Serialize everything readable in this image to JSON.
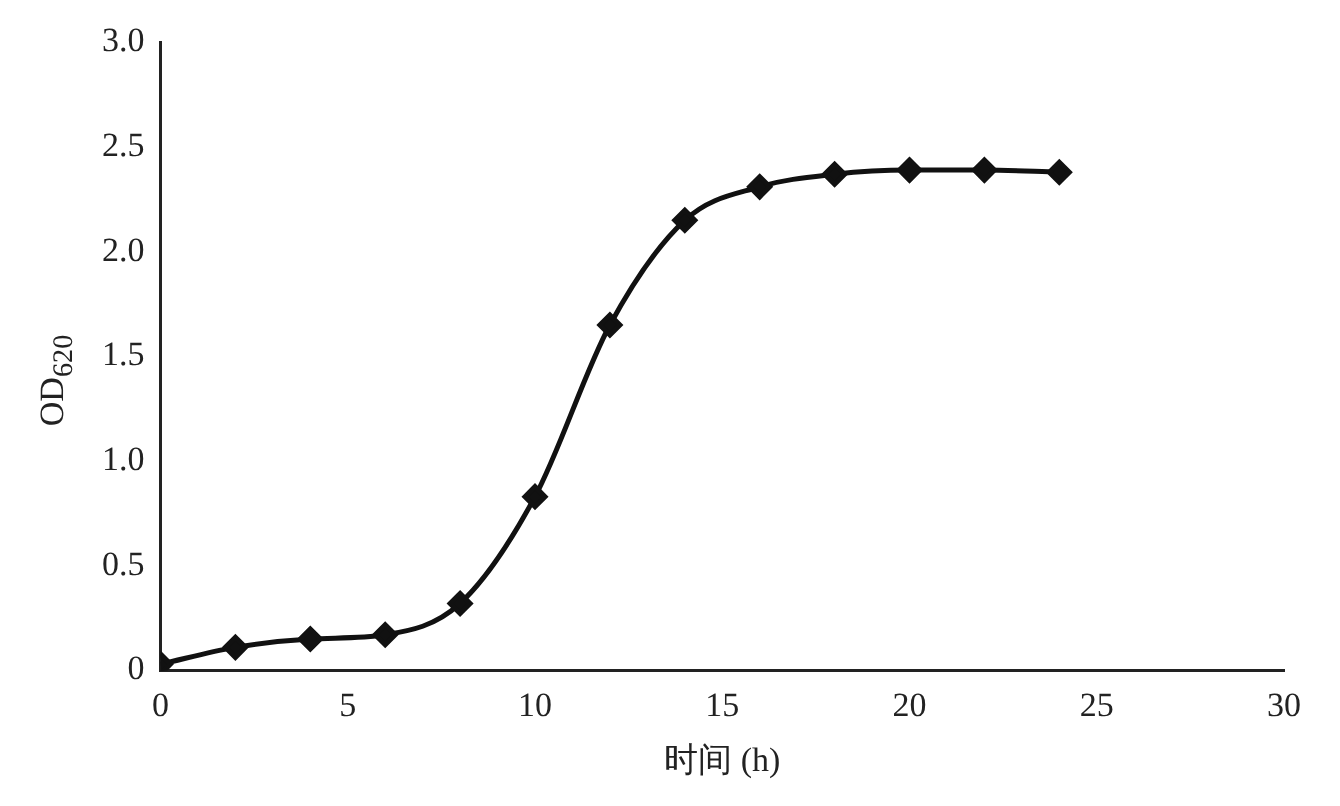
{
  "chart_data": {
    "type": "line",
    "xlabel": "时间 (h)",
    "ylabel": "OD$_{620}$",
    "x": [
      0,
      2,
      4,
      6,
      8,
      10,
      12,
      14,
      16,
      18,
      20,
      22,
      24
    ],
    "series": [
      {
        "color": "#111111",
        "values": [
          0.03,
          0.11,
          0.15,
          0.17,
          0.32,
          0.83,
          1.65,
          2.15,
          2.31,
          2.37,
          2.39,
          2.39,
          2.38
        ]
      }
    ],
    "xlim": [
      0,
      30
    ],
    "xticks": [
      0,
      5,
      10,
      15,
      20,
      25,
      30
    ],
    "ylim": [
      0,
      3
    ],
    "yticks": [
      0,
      {
        "value": 0.5,
        "label": "0.5"
      },
      {
        "value": 1,
        "label": "1.0"
      },
      {
        "value": 1.5,
        "label": "1.5"
      },
      {
        "value": 2,
        "label": "2.0"
      },
      {
        "value": 2.5,
        "label": "2.5"
      },
      {
        "value": 3,
        "label": "3.0"
      }
    ],
    "grid": false,
    "legend": false,
    "marker": "diamond",
    "line_style": "solid"
  }
}
